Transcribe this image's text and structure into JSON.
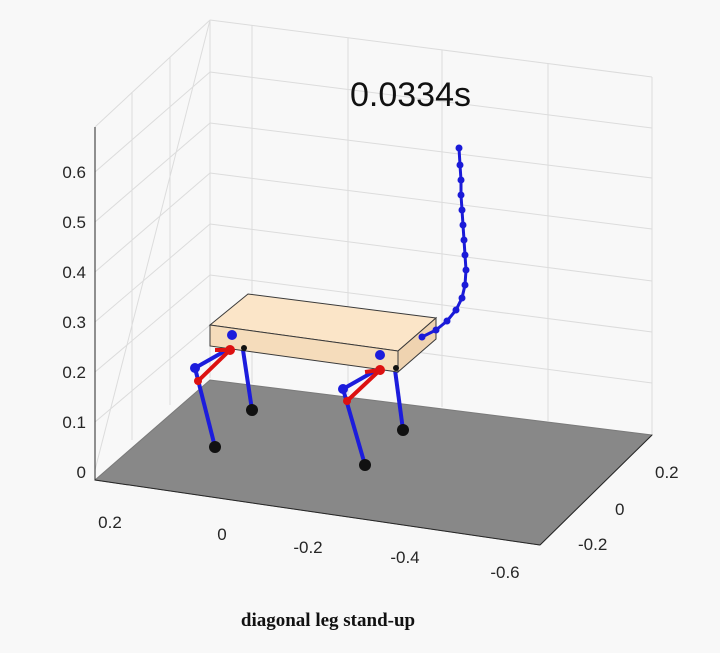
{
  "timestamp": "0.0334s",
  "caption": "diagonal leg stand-up",
  "axes": {
    "z_ticks": [
      "0",
      "0.1",
      "0.2",
      "0.3",
      "0.4",
      "0.5",
      "0.6"
    ],
    "x_ticks": [
      "0.2",
      "0",
      "-0.2",
      "-0.4",
      "-0.6"
    ],
    "y_ticks": [
      "0.2",
      "0",
      "-0.2"
    ]
  },
  "colors": {
    "floor": "#888888",
    "body_fill": "#fbe5c8",
    "body_stroke": "#3a3a3a",
    "leg_blue": "#1c1cdc",
    "leg_red": "#dd1111",
    "foot": "#111111",
    "trajectory": "#1a1ad8",
    "grid": "#dcdcdc"
  }
}
